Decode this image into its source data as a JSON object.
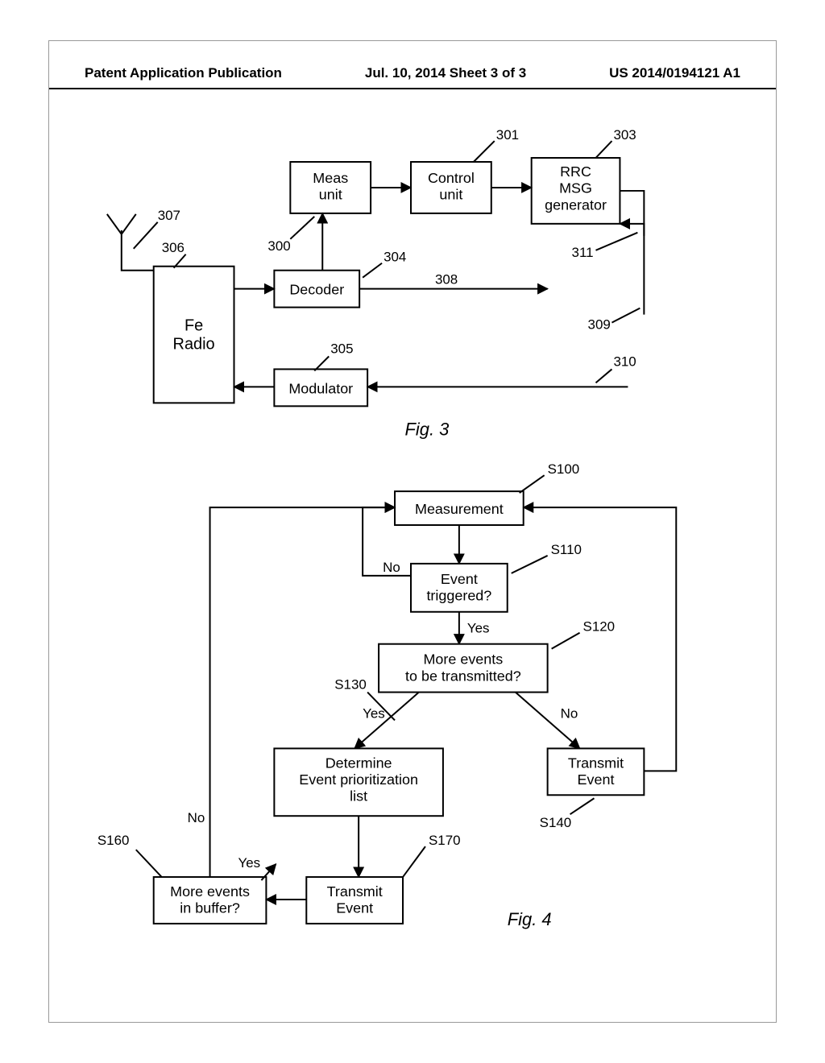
{
  "header": {
    "left": "Patent Application Publication",
    "center": "Jul. 10, 2014  Sheet 3 of 3",
    "right": "US 2014/0194121 A1"
  },
  "fig3": {
    "caption": "Fig. 3",
    "blocks": {
      "meas": {
        "label": "Meas\nunit",
        "ref": "300"
      },
      "control": {
        "label": "Control\nunit",
        "ref": "301"
      },
      "rrc": {
        "label": "RRC\nMSG\ngenerator",
        "ref": "303"
      },
      "decoder": {
        "label": "Decoder",
        "ref": "304"
      },
      "modulator": {
        "label": "Modulator",
        "ref": "305"
      },
      "feRadio": {
        "label": "Fe\nRadio",
        "ref": "306"
      },
      "antenna": {
        "ref": "307"
      },
      "line308": "308",
      "line309": "309",
      "line310": "310",
      "line311": "311"
    }
  },
  "fig4": {
    "caption": "Fig. 4",
    "blocks": {
      "measurement": {
        "label": "Measurement",
        "ref": "S100"
      },
      "eventTriggered": {
        "label": "Event\ntriggered?",
        "ref": "S110",
        "no": "No",
        "yes": "Yes"
      },
      "moreEventsTx": {
        "label": "More events\nto be transmitted?",
        "ref": "S120",
        "yes": "Yes",
        "no": "No"
      },
      "prioritize": {
        "label": "Determine\nEvent prioritization\nlist",
        "ref": "S130"
      },
      "transmitEvent1": {
        "label": "Transmit\nEvent",
        "ref": "S140"
      },
      "transmitEvent2": {
        "label": "Transmit\nEvent",
        "ref": "S170"
      },
      "moreInBuffer": {
        "label": "More events\nin buffer?",
        "ref": "S160",
        "yes": "Yes",
        "no": "No"
      }
    }
  },
  "style": {
    "font_label": 18,
    "font_ref": 17,
    "font_caption": 22,
    "stroke": "#000000",
    "bg": "#ffffff"
  }
}
